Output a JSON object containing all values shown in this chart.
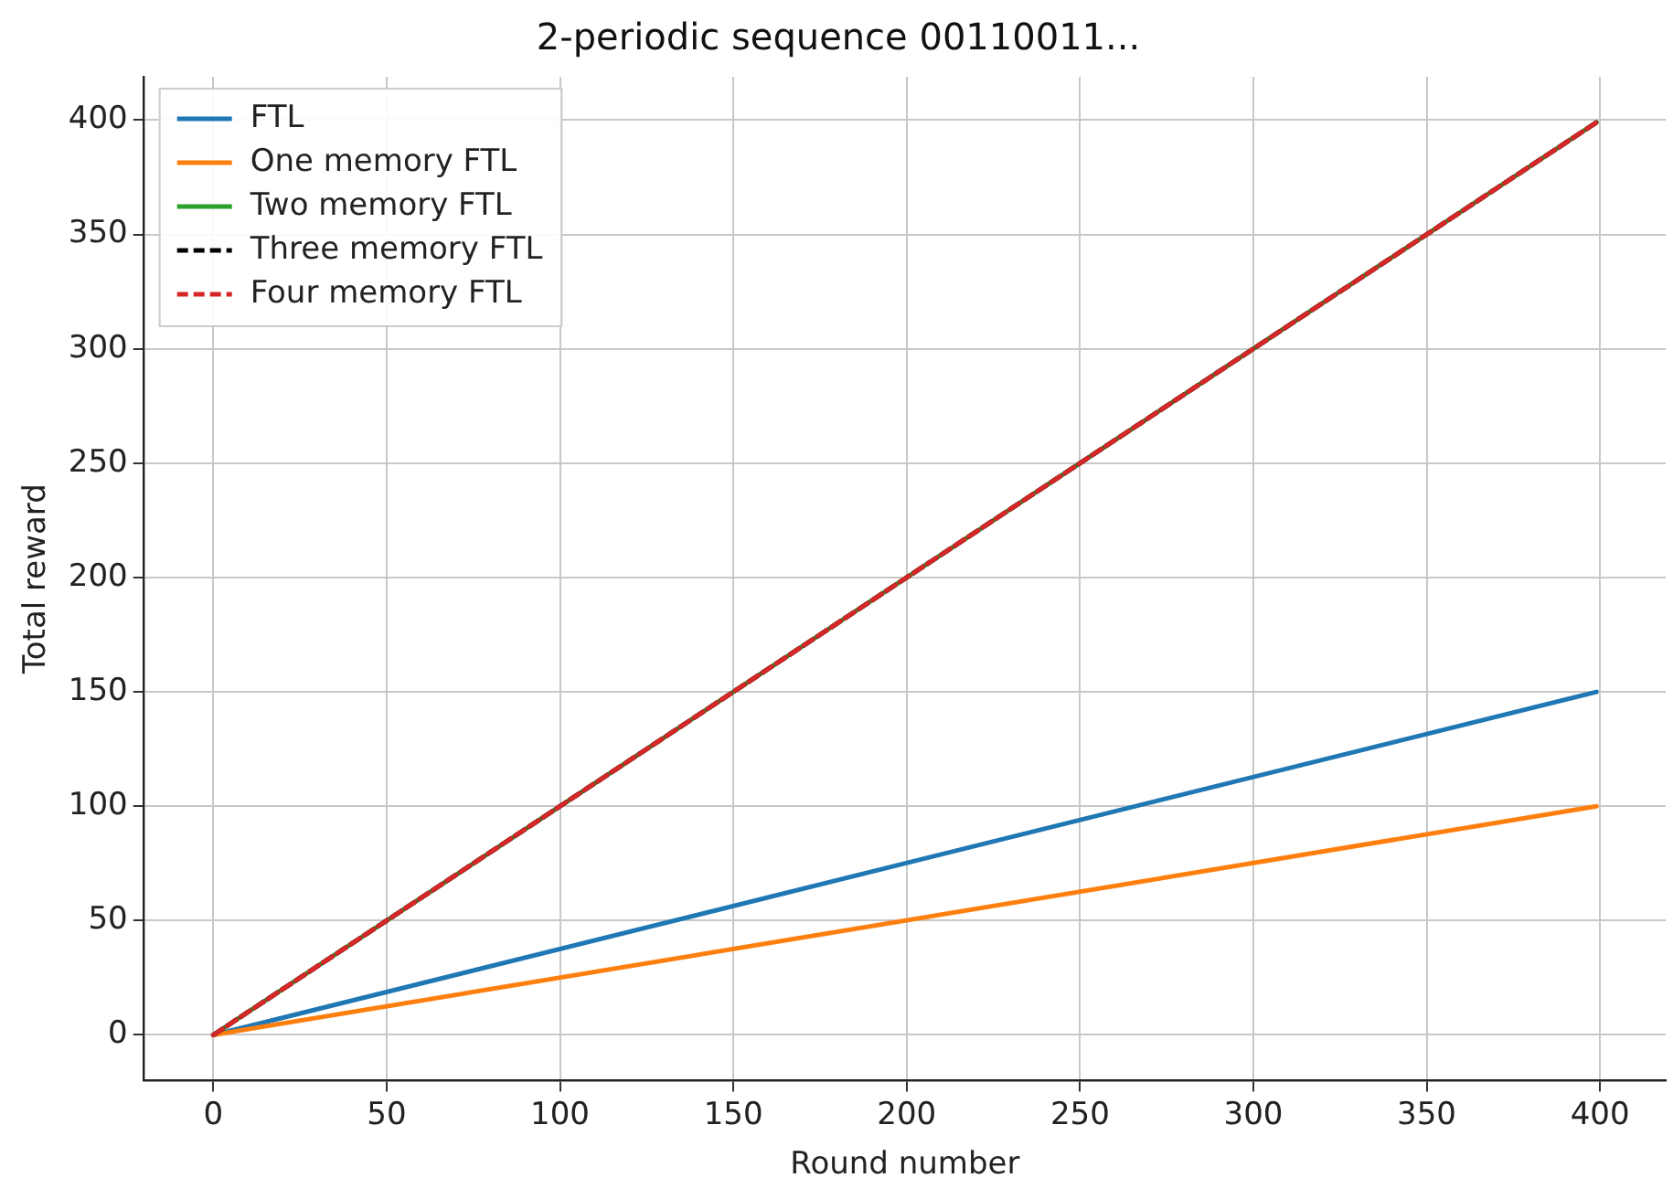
{
  "chart_data": {
    "type": "line",
    "title": "2-periodic sequence 00110011...",
    "xlabel": "Round number",
    "ylabel": "Total reward",
    "x": [
      0,
      399
    ],
    "series": [
      {
        "name": "FTL",
        "color": "#1f77b4",
        "values": [
          0,
          150
        ]
      },
      {
        "name": "One memory FTL",
        "color": "#ff7f0e",
        "values": [
          0,
          100
        ]
      },
      {
        "name": "Two memory FTL",
        "color": "#2ca02c",
        "values": [
          0,
          399
        ]
      },
      {
        "name": "Three memory FTL",
        "color": "#000000",
        "values": [
          0,
          399
        ],
        "line_style": "dashed"
      },
      {
        "name": "Four memory FTL",
        "color": "#d62728",
        "values": [
          0,
          399
        ],
        "line_style": "dashed"
      }
    ],
    "xlim": [
      -19.95,
      418.95
    ],
    "ylim": [
      -19.95,
      418.95
    ],
    "xticks": [
      0,
      50,
      100,
      150,
      200,
      250,
      300,
      350,
      400
    ],
    "yticks": [
      0,
      50,
      100,
      150,
      200,
      250,
      300,
      350,
      400
    ],
    "grid": true,
    "legend": "top left",
    "marker": "none"
  }
}
